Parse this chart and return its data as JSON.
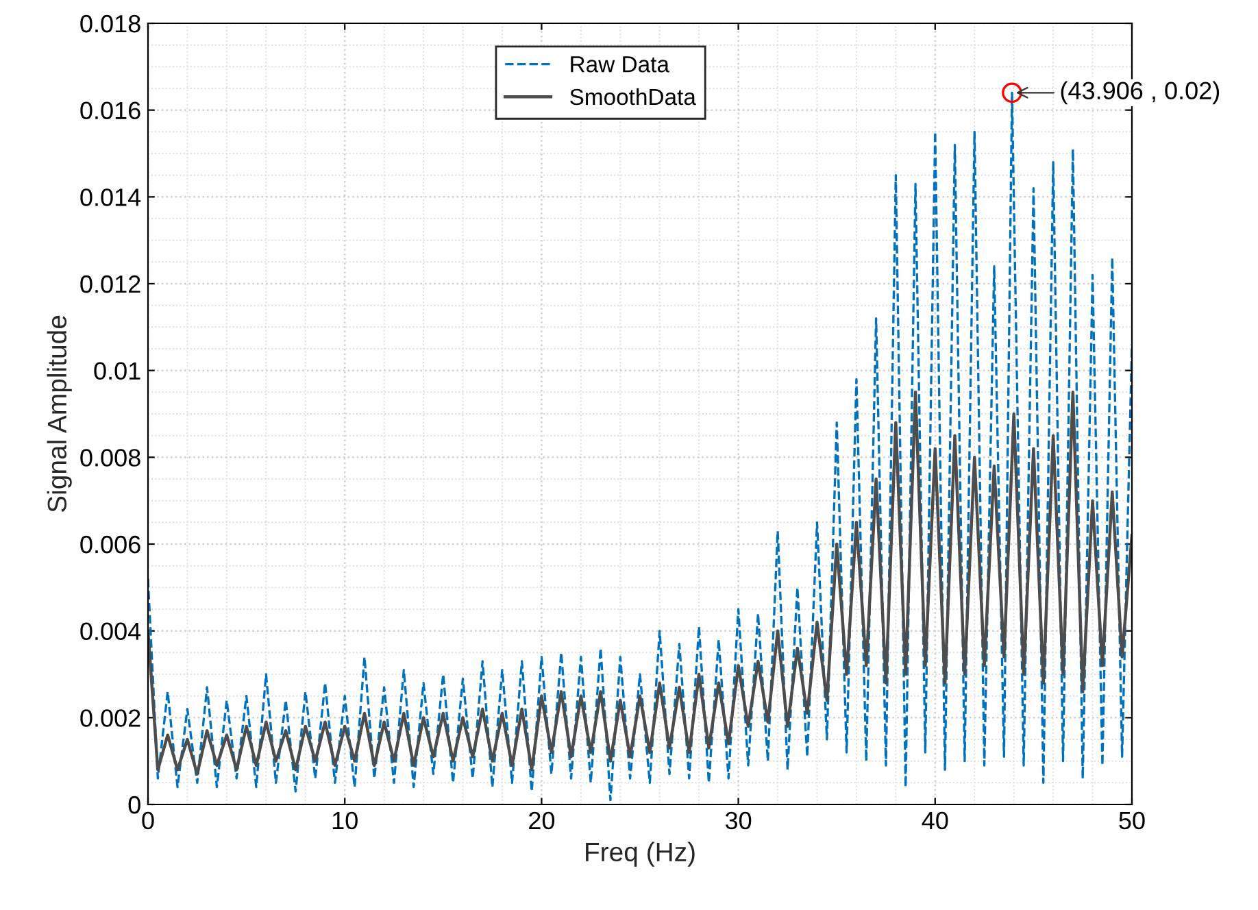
{
  "chart_data": {
    "type": "line",
    "xlabel": "Freq (Hz)",
    "ylabel": "Signal Amplitude",
    "xlim": [
      0,
      50
    ],
    "ylim": [
      0,
      0.018
    ],
    "xticks": [
      0,
      10,
      20,
      30,
      40,
      50
    ],
    "yticks": [
      0,
      0.002,
      0.004,
      0.006,
      0.008,
      0.01,
      0.012,
      0.014,
      0.016,
      0.018
    ],
    "grid": true,
    "legend": "top",
    "x": [
      0,
      0.5,
      1,
      1.5,
      2,
      2.5,
      3,
      3.5,
      4,
      4.5,
      5,
      5.5,
      6,
      6.5,
      7,
      7.5,
      8,
      8.5,
      9,
      9.5,
      10,
      10.5,
      11,
      11.5,
      12,
      12.5,
      13,
      13.5,
      14,
      14.5,
      15,
      15.5,
      16,
      16.5,
      17,
      17.5,
      18,
      18.5,
      19,
      19.5,
      20,
      20.5,
      21,
      21.5,
      22,
      22.5,
      23,
      23.5,
      24,
      24.5,
      25,
      25.5,
      26,
      26.5,
      27,
      27.5,
      28,
      28.5,
      29,
      29.5,
      30,
      30.5,
      31,
      31.5,
      32,
      32.5,
      33,
      33.5,
      34,
      34.5,
      35,
      35.5,
      36,
      36.5,
      37,
      37.5,
      38,
      38.5,
      39,
      39.5,
      40,
      40.5,
      41,
      41.5,
      42,
      42.5,
      43,
      43.5,
      44,
      44.5,
      45,
      45.5,
      46,
      46.5,
      47,
      47.5,
      48,
      48.5,
      49,
      49.5,
      50
    ],
    "series": [
      {
        "name": "Raw Data",
        "color": "#0072bd",
        "line_style": "dashed",
        "x": [
          0,
          0.5,
          1,
          1.5,
          2,
          2.5,
          3,
          3.5,
          4,
          4.5,
          5,
          5.5,
          6,
          6.5,
          7,
          7.5,
          8,
          8.5,
          9,
          9.5,
          10,
          10.5,
          11,
          11.5,
          12,
          12.5,
          13,
          13.5,
          14,
          14.5,
          15,
          15.5,
          16,
          16.5,
          17,
          17.5,
          18,
          18.5,
          19,
          19.5,
          20,
          20.5,
          21,
          21.5,
          22,
          22.5,
          23,
          23.5,
          24,
          24.5,
          25,
          25.5,
          26,
          26.5,
          27,
          27.5,
          28,
          28.5,
          29,
          29.5,
          30,
          30.5,
          31,
          31.5,
          32,
          32.5,
          33,
          33.5,
          34,
          34.5,
          35,
          35.5,
          36,
          36.5,
          37,
          37.5,
          38,
          38.5,
          39,
          39.5,
          40,
          40.5,
          41,
          41.5,
          42,
          42.5,
          43,
          43.5,
          43.906,
          44.5,
          45,
          45.5,
          46,
          46.5,
          47,
          47.5,
          48,
          48.5,
          49,
          49.5,
          50
        ],
        "values": [
          0.0052,
          0.0006,
          0.0026,
          0.0004,
          0.0022,
          0.0005,
          0.0027,
          0.0004,
          0.0024,
          0.0006,
          0.0025,
          0.0004,
          0.003,
          0.0005,
          0.0024,
          0.0003,
          0.0026,
          0.0006,
          0.0028,
          0.0005,
          0.0025,
          0.0004,
          0.0034,
          0.0006,
          0.0027,
          0.0005,
          0.0031,
          0.0004,
          0.0028,
          0.0007,
          0.003,
          0.0005,
          0.0029,
          0.0006,
          0.0033,
          0.0004,
          0.0031,
          0.0005,
          0.0033,
          0.0003,
          0.0034,
          0.0007,
          0.0035,
          0.0006,
          0.0034,
          0.0005,
          0.0036,
          0.0001,
          0.0034,
          0.0006,
          0.003,
          0.0005,
          0.004,
          0.0007,
          0.0037,
          0.0006,
          0.0041,
          0.0005,
          0.0038,
          0.0006,
          0.0045,
          0.0009,
          0.0044,
          0.001,
          0.0063,
          0.0008,
          0.005,
          0.0011,
          0.0065,
          0.0015,
          0.0088,
          0.0012,
          0.0098,
          0.001,
          0.0112,
          0.0009,
          0.0145,
          0.0004,
          0.0143,
          0.0012,
          0.0155,
          0.0008,
          0.0152,
          0.001,
          0.0155,
          0.0009,
          0.0124,
          0.0011,
          0.0164,
          0.0009,
          0.0142,
          0.0005,
          0.0148,
          0.001,
          0.0151,
          0.0006,
          0.0122,
          0.0009,
          0.0126,
          0.0011,
          0.0106
        ]
      },
      {
        "name": "SmoothData",
        "color": "#4d4d4d",
        "line_style": "solid",
        "values": [
          0.004,
          0.0008,
          0.0016,
          0.0008,
          0.0015,
          0.0007,
          0.0017,
          0.0009,
          0.0016,
          0.0008,
          0.0018,
          0.0009,
          0.0019,
          0.001,
          0.0017,
          0.0008,
          0.0018,
          0.001,
          0.0019,
          0.0009,
          0.0018,
          0.001,
          0.0021,
          0.0009,
          0.0019,
          0.001,
          0.0021,
          0.0009,
          0.002,
          0.0011,
          0.0021,
          0.001,
          0.002,
          0.0011,
          0.0022,
          0.001,
          0.0021,
          0.0009,
          0.0022,
          0.0008,
          0.0025,
          0.0012,
          0.0026,
          0.0011,
          0.0025,
          0.0012,
          0.0026,
          0.001,
          0.0024,
          0.0011,
          0.0025,
          0.0012,
          0.0028,
          0.0013,
          0.0027,
          0.0012,
          0.003,
          0.0013,
          0.0028,
          0.0014,
          0.0032,
          0.0018,
          0.0033,
          0.0019,
          0.004,
          0.0018,
          0.0036,
          0.0021,
          0.0042,
          0.0024,
          0.006,
          0.003,
          0.0065,
          0.0032,
          0.0075,
          0.0028,
          0.0088,
          0.003,
          0.0095,
          0.0032,
          0.0082,
          0.0028,
          0.0085,
          0.003,
          0.008,
          0.0032,
          0.0078,
          0.0034,
          0.009,
          0.003,
          0.0082,
          0.0028,
          0.0085,
          0.003,
          0.0095,
          0.0026,
          0.007,
          0.0032,
          0.0072,
          0.0034,
          0.0062
        ]
      },
      {
        "type": "scatter",
        "color": "#ff0000",
        "marker": "circle",
        "x": [
          43.906
        ],
        "values": [
          0.0164
        ]
      }
    ],
    "annotations": [
      {
        "text": "(43.906 , 0.02)",
        "x": 43.906,
        "y": 0.0164
      }
    ]
  }
}
